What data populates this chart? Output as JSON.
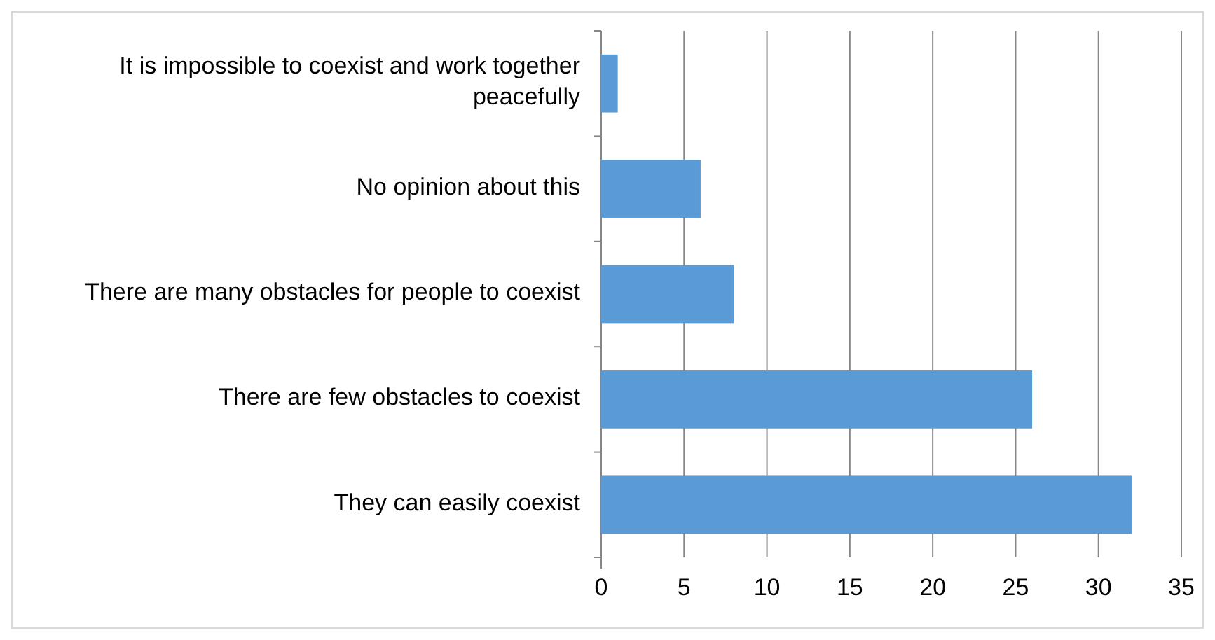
{
  "chart_data": {
    "type": "bar",
    "orientation": "horizontal",
    "categories": [
      "It is impossible to coexist and work together peacefully",
      "No opinion about this",
      "There are many obstacles for people to coexist",
      "There are few obstacles to coexist",
      "They can easily coexist"
    ],
    "values": [
      1,
      6,
      8,
      26,
      32
    ],
    "color": "#5b9bd5",
    "xlim": [
      0,
      35
    ],
    "xticks": [
      0,
      5,
      10,
      15,
      20,
      25,
      30,
      35
    ],
    "grid": "x"
  }
}
